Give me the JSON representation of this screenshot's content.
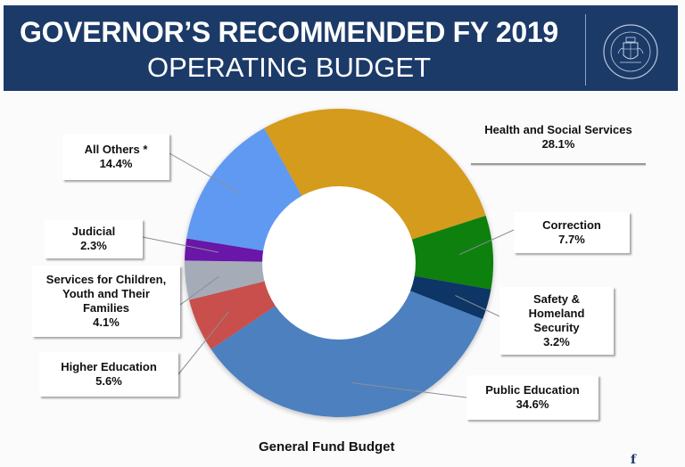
{
  "header": {
    "title_line1": "GOVERNOR’S RECOMMENDED FY 2019",
    "title_line2": "OPERATING BUDGET",
    "seal_icon": "governor-seal-icon",
    "seal_text": "OFFICE OF THE GOVERNOR · JOHN C. CARNEY",
    "background_color": "#1b3a68"
  },
  "chart_data": {
    "type": "pie",
    "variant": "donut",
    "title": "General Fund Budget",
    "unit": "%",
    "start": "clockwise from Health and Social Services at top",
    "slices": [
      {
        "key": "hss",
        "label": "Health and Social Services",
        "value": 28.1,
        "display": "28.1%",
        "color": "#d49b1e"
      },
      {
        "key": "correction",
        "label": "Correction",
        "value": 7.7,
        "display": "7.7%",
        "color": "#0a8010"
      },
      {
        "key": "safety",
        "label": "Safety & Homeland Security",
        "label_lines": [
          "Safety &",
          "Homeland",
          "Security"
        ],
        "value": 3.2,
        "display": "3.2%",
        "color": "#0e3466"
      },
      {
        "key": "publicEd",
        "label": "Public Education",
        "value": 34.6,
        "display": "34.6%",
        "color": "#4e80bf"
      },
      {
        "key": "higherEd",
        "label": "Higher Education",
        "value": 5.6,
        "display": "5.6%",
        "color": "#c8504b"
      },
      {
        "key": "children",
        "label": "Services for Children, Youth and Their Families",
        "label_lines": [
          "Services for Children,",
          "Youth and Their",
          "Families"
        ],
        "value": 4.1,
        "display": "4.1%",
        "color": "#a5acb8"
      },
      {
        "key": "judicial",
        "label": "Judicial",
        "value": 2.3,
        "display": "2.3%",
        "color": "#6a17a8"
      },
      {
        "key": "others",
        "label": "All Others *",
        "value": 14.4,
        "display": "14.4%",
        "color": "#6199f2"
      }
    ]
  },
  "footer": {
    "corner_glyph": "f"
  }
}
